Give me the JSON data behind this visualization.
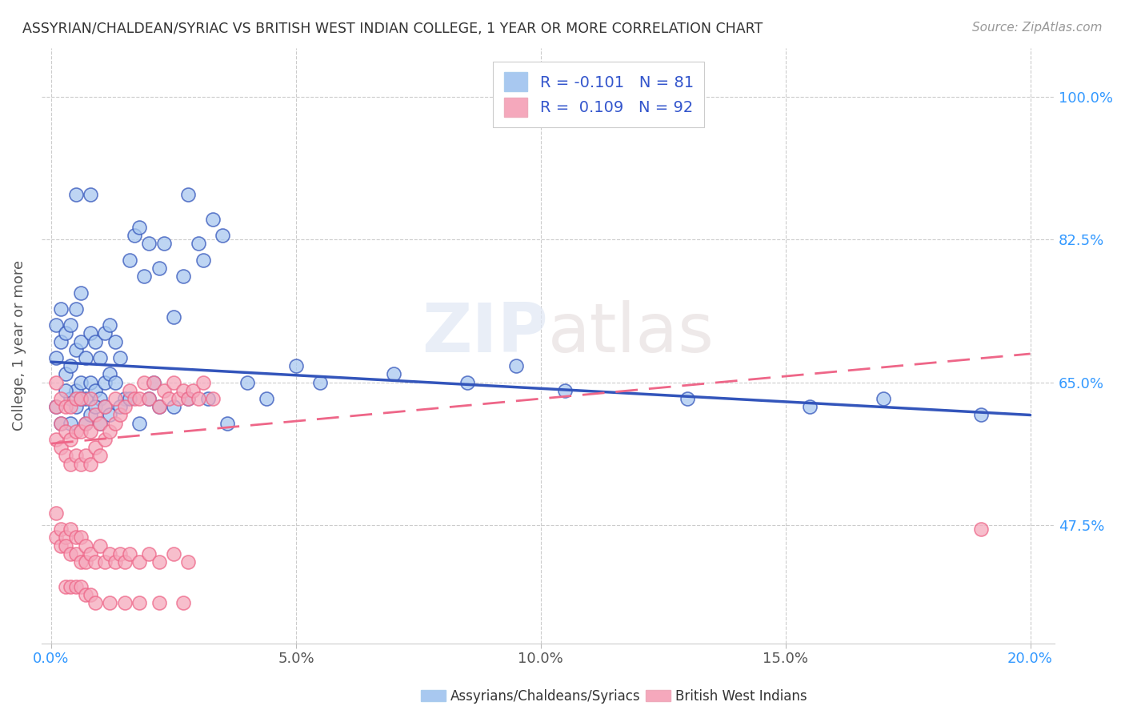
{
  "title": "ASSYRIAN/CHALDEAN/SYRIAC VS BRITISH WEST INDIAN COLLEGE, 1 YEAR OR MORE CORRELATION CHART",
  "source": "Source: ZipAtlas.com",
  "ylabel": "College, 1 year or more",
  "ylabel_ticks": [
    "47.5%",
    "65.0%",
    "82.5%",
    "100.0%"
  ],
  "ylabel_tick_vals": [
    0.475,
    0.65,
    0.825,
    1.0
  ],
  "xlabel_ticks_outer": [
    "0.0%",
    "20.0%"
  ],
  "xlabel_ticks_outer_vals": [
    0.0,
    0.2
  ],
  "xlabel_ticks_inner": [
    "5.0%",
    "10.0%",
    "15.0%"
  ],
  "xlabel_ticks_inner_vals": [
    0.05,
    0.1,
    0.15
  ],
  "xlim": [
    -0.002,
    0.205
  ],
  "ylim": [
    0.33,
    1.06
  ],
  "blue_R": -0.101,
  "blue_N": 81,
  "pink_R": 0.109,
  "pink_N": 92,
  "blue_color": "#A8C8F0",
  "pink_color": "#F5A8BC",
  "blue_line_color": "#3355BB",
  "pink_line_color": "#EE6688",
  "blue_line_y0": 0.675,
  "blue_line_y1": 0.61,
  "pink_line_y0": 0.575,
  "pink_line_y1": 0.685,
  "legend_label_blue": "Assyrians/Chaldeans/Syriacs",
  "legend_label_pink": "British West Indians",
  "watermark": "ZIPatlas",
  "blue_x": [
    0.001,
    0.001,
    0.002,
    0.002,
    0.003,
    0.003,
    0.004,
    0.004,
    0.004,
    0.005,
    0.005,
    0.005,
    0.006,
    0.006,
    0.006,
    0.007,
    0.007,
    0.008,
    0.008,
    0.009,
    0.009,
    0.01,
    0.01,
    0.011,
    0.011,
    0.012,
    0.012,
    0.013,
    0.013,
    0.014,
    0.015,
    0.016,
    0.017,
    0.018,
    0.019,
    0.02,
    0.021,
    0.022,
    0.023,
    0.025,
    0.027,
    0.028,
    0.03,
    0.031,
    0.033,
    0.035,
    0.001,
    0.002,
    0.003,
    0.004,
    0.005,
    0.006,
    0.007,
    0.008,
    0.009,
    0.01,
    0.011,
    0.012,
    0.014,
    0.016,
    0.018,
    0.02,
    0.022,
    0.025,
    0.028,
    0.032,
    0.036,
    0.04,
    0.044,
    0.05,
    0.055,
    0.07,
    0.085,
    0.095,
    0.105,
    0.13,
    0.155,
    0.17,
    0.19,
    0.005,
    0.008
  ],
  "blue_y": [
    0.72,
    0.68,
    0.7,
    0.74,
    0.66,
    0.71,
    0.63,
    0.67,
    0.72,
    0.64,
    0.69,
    0.74,
    0.65,
    0.7,
    0.76,
    0.63,
    0.68,
    0.65,
    0.71,
    0.64,
    0.7,
    0.63,
    0.68,
    0.65,
    0.71,
    0.66,
    0.72,
    0.65,
    0.7,
    0.68,
    0.63,
    0.8,
    0.83,
    0.84,
    0.78,
    0.82,
    0.65,
    0.79,
    0.82,
    0.73,
    0.78,
    0.88,
    0.82,
    0.8,
    0.85,
    0.83,
    0.62,
    0.6,
    0.64,
    0.6,
    0.62,
    0.63,
    0.6,
    0.61,
    0.62,
    0.6,
    0.62,
    0.61,
    0.62,
    0.63,
    0.6,
    0.63,
    0.62,
    0.62,
    0.63,
    0.63,
    0.6,
    0.65,
    0.63,
    0.67,
    0.65,
    0.66,
    0.65,
    0.67,
    0.64,
    0.63,
    0.62,
    0.63,
    0.61,
    0.88,
    0.88
  ],
  "pink_x": [
    0.001,
    0.001,
    0.001,
    0.002,
    0.002,
    0.002,
    0.003,
    0.003,
    0.003,
    0.004,
    0.004,
    0.004,
    0.005,
    0.005,
    0.005,
    0.006,
    0.006,
    0.006,
    0.007,
    0.007,
    0.008,
    0.008,
    0.008,
    0.009,
    0.009,
    0.01,
    0.01,
    0.011,
    0.011,
    0.012,
    0.013,
    0.013,
    0.014,
    0.015,
    0.016,
    0.017,
    0.018,
    0.019,
    0.02,
    0.021,
    0.022,
    0.023,
    0.024,
    0.025,
    0.026,
    0.027,
    0.028,
    0.029,
    0.03,
    0.031,
    0.001,
    0.001,
    0.002,
    0.002,
    0.003,
    0.003,
    0.004,
    0.004,
    0.005,
    0.005,
    0.006,
    0.006,
    0.007,
    0.007,
    0.008,
    0.009,
    0.01,
    0.011,
    0.012,
    0.013,
    0.014,
    0.015,
    0.016,
    0.018,
    0.02,
    0.022,
    0.025,
    0.028,
    0.003,
    0.004,
    0.005,
    0.006,
    0.007,
    0.008,
    0.009,
    0.012,
    0.015,
    0.018,
    0.022,
    0.027,
    0.033,
    0.19
  ],
  "pink_y": [
    0.58,
    0.62,
    0.65,
    0.57,
    0.6,
    0.63,
    0.56,
    0.59,
    0.62,
    0.55,
    0.58,
    0.62,
    0.56,
    0.59,
    0.63,
    0.55,
    0.59,
    0.63,
    0.56,
    0.6,
    0.55,
    0.59,
    0.63,
    0.57,
    0.61,
    0.56,
    0.6,
    0.58,
    0.62,
    0.59,
    0.6,
    0.63,
    0.61,
    0.62,
    0.64,
    0.63,
    0.63,
    0.65,
    0.63,
    0.65,
    0.62,
    0.64,
    0.63,
    0.65,
    0.63,
    0.64,
    0.63,
    0.64,
    0.63,
    0.65,
    0.49,
    0.46,
    0.47,
    0.45,
    0.46,
    0.45,
    0.47,
    0.44,
    0.46,
    0.44,
    0.46,
    0.43,
    0.45,
    0.43,
    0.44,
    0.43,
    0.45,
    0.43,
    0.44,
    0.43,
    0.44,
    0.43,
    0.44,
    0.43,
    0.44,
    0.43,
    0.44,
    0.43,
    0.4,
    0.4,
    0.4,
    0.4,
    0.39,
    0.39,
    0.38,
    0.38,
    0.38,
    0.38,
    0.38,
    0.38,
    0.63,
    0.47
  ]
}
